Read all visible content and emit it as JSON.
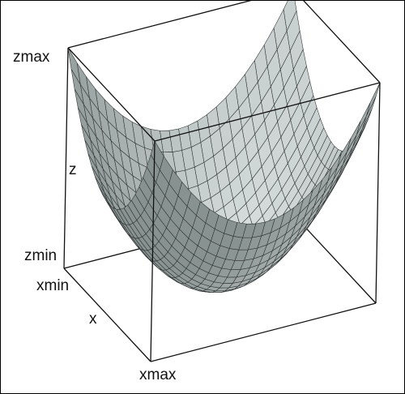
{
  "chart_data": {
    "type": "surface",
    "surface": "paraboloid",
    "function": "z = x^2 + y^2",
    "x_range": [
      -1,
      1
    ],
    "y_range": [
      -1,
      1
    ],
    "z_range": [
      0,
      2
    ],
    "grid_lines_per_side": 24,
    "labels": {
      "z_max": "zmax",
      "z_axis": "z",
      "z_min": "zmin",
      "x_min": "xmin",
      "x_axis": "x",
      "x_max": "xmax"
    },
    "bounding_box": true,
    "colors": {
      "surface_light": "#d7dedd",
      "surface_dark": "#7e8988",
      "mesh": "#2b2f2f",
      "box": "#111111",
      "background": "#ffffff"
    }
  }
}
